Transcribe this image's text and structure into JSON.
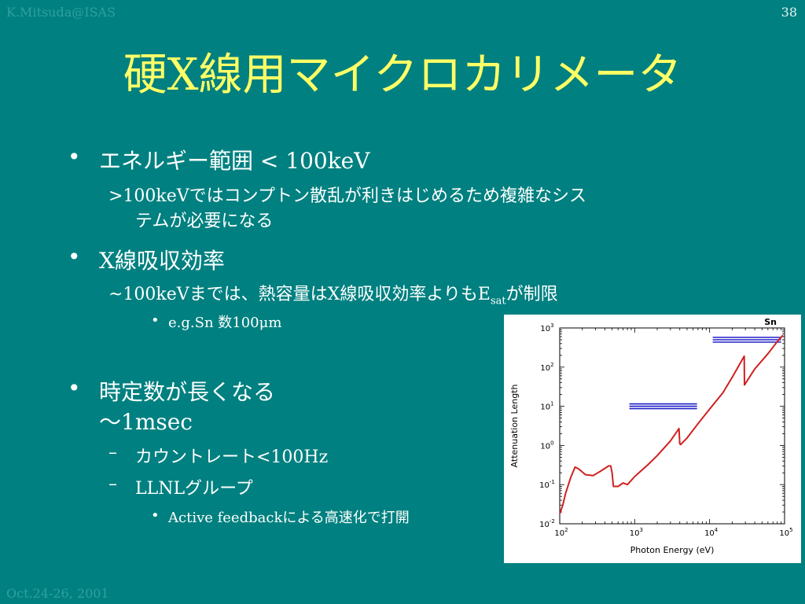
{
  "slide": {
    "author": "K.Mitsuda@ISAS",
    "page_number": "38",
    "date": "Oct.24-26, 2001",
    "title_pre": "硬",
    "title_x": "X",
    "title_post": "線用マイクロカリメータ"
  },
  "bullets": [
    {
      "marker": "•",
      "text": "エネルギー範囲 < 100keV"
    },
    {
      "text": ">100keVではコンプトン散乱が利きはじめるため複雑なシス"
    },
    {
      "text": "テムが必要になる"
    },
    {
      "marker": "•",
      "text": "X線吸収効率"
    },
    {
      "text_pre": "~100keVまでは、熱容量はX線吸収効率よりもE",
      "sub": "sat",
      "text_post": "が制限"
    },
    {
      "marker": "•",
      "text": "e.g.Sn 数100μm"
    },
    {
      "marker": "•",
      "text": "時定数が長くなる"
    },
    {
      "text": "〜1msec"
    },
    {
      "marker": "–",
      "text": "カウントレート<100Hz"
    },
    {
      "marker": "–",
      "text": "LLNLグループ"
    },
    {
      "marker": "•",
      "text": "Active feedbackによる高速化で打開"
    }
  ],
  "chart_data": {
    "type": "line",
    "title": "Sn",
    "xlabel": "Photon Energy (eV)",
    "ylabel": "Attenuation Length",
    "x_scale": "log",
    "y_scale": "log",
    "xlim": [
      100,
      100000
    ],
    "ylim": [
      0.01,
      1000
    ],
    "x_ticks": [
      100,
      1000,
      10000,
      100000
    ],
    "y_ticks": [
      0.01,
      0.1,
      1,
      10,
      100,
      1000
    ],
    "x_tick_labels": [
      {
        "base": "10",
        "exp": "2"
      },
      {
        "base": "10",
        "exp": "3"
      },
      {
        "base": "10",
        "exp": "4"
      },
      {
        "base": "10",
        "exp": "5"
      }
    ],
    "y_tick_labels": [
      {
        "base": "10",
        "exp": "-2"
      },
      {
        "base": "10",
        "exp": "-1"
      },
      {
        "base": "10",
        "exp": "0"
      },
      {
        "base": "10",
        "exp": "1"
      },
      {
        "base": "10",
        "exp": "2"
      },
      {
        "base": "10",
        "exp": "3"
      }
    ],
    "series": [
      {
        "color": "#d02020",
        "x": [
          100,
          110,
          120,
          140,
          160,
          180,
          220,
          280,
          350,
          450,
          480,
          500,
          520,
          600,
          700,
          800,
          1000,
          1500,
          2000,
          3000,
          3900,
          4000,
          4100,
          4200,
          5000,
          7000,
          10000,
          15000,
          20000,
          29000,
          29200,
          30000,
          40000,
          60000,
          80000,
          95000
        ],
        "y": [
          0.018,
          0.03,
          0.06,
          0.15,
          0.28,
          0.25,
          0.18,
          0.17,
          0.22,
          0.3,
          0.3,
          0.2,
          0.09,
          0.09,
          0.11,
          0.1,
          0.16,
          0.32,
          0.55,
          1.3,
          2.7,
          1.1,
          1.05,
          1.1,
          1.55,
          3.6,
          8.5,
          22,
          55,
          190,
          35,
          38,
          90,
          220,
          450,
          650
        ]
      }
    ],
    "bands": [
      {
        "color": "#2020c8",
        "x0": 850,
        "x1": 6800,
        "y_center": 10
      },
      {
        "color": "#2020c8",
        "x0": 11000,
        "x1": 90000,
        "y_center": 500
      }
    ]
  }
}
